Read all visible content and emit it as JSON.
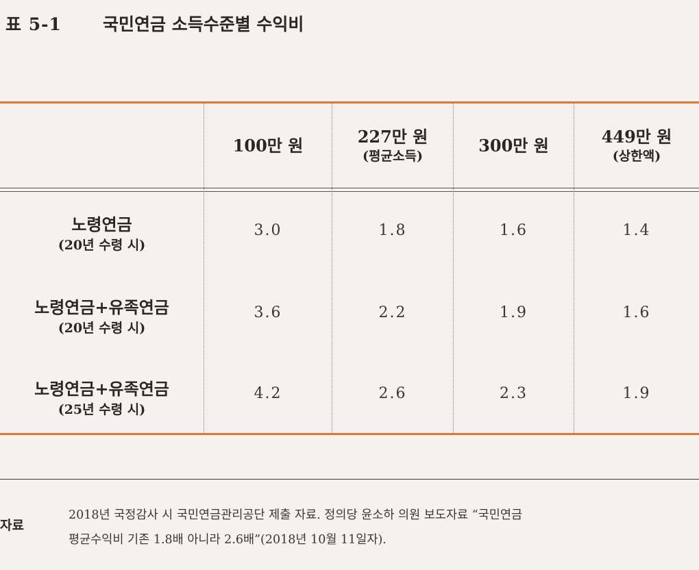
{
  "table_number": "표 5-1",
  "title": "국민연금 소득수준별 수익비",
  "columns": [
    {
      "main": "100만 원",
      "sub": ""
    },
    {
      "main": "227만 원",
      "sub": "(평균소득)"
    },
    {
      "main": "300만 원",
      "sub": ""
    },
    {
      "main": "449만 원",
      "sub": "(상한액)"
    }
  ],
  "rows": [
    {
      "label": "노령연금",
      "sub": "(20년 수령 시)",
      "values": [
        "3.0",
        "1.8",
        "1.6",
        "1.4"
      ]
    },
    {
      "label": "노령연금+유족연금",
      "sub": "(20년 수령 시)",
      "values": [
        "3.6",
        "2.2",
        "1.9",
        "1.6"
      ]
    },
    {
      "label": "노령연금+유족연금",
      "sub": "(25년 수령 시)",
      "values": [
        "4.2",
        "2.6",
        "2.3",
        "1.9"
      ]
    }
  ],
  "source": {
    "label": "자료",
    "line1": "2018년 국정감사 시 국민연금관리공단 제출 자료. 정의당 윤소하 의원 보도자료 “국민연금",
    "line2": "평균수익비 기존 1.8배 아니라 2.6배”(2018년 10월 11일자)."
  }
}
